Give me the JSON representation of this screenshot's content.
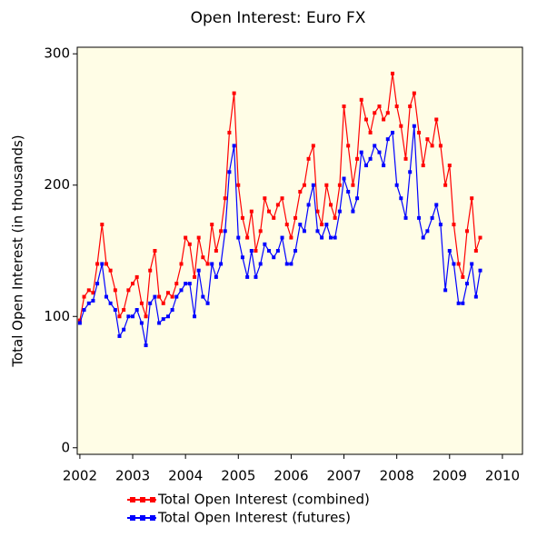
{
  "chart_data": {
    "type": "line",
    "title": "Open Interest: Euro FX",
    "y_label": "Total Open Interest (in thousands)",
    "x": [
      2002.0,
      2002.08,
      2002.17,
      2002.25,
      2002.33,
      2002.42,
      2002.5,
      2002.58,
      2002.67,
      2002.75,
      2002.83,
      2002.92,
      2003.0,
      2003.08,
      2003.17,
      2003.25,
      2003.33,
      2003.42,
      2003.5,
      2003.58,
      2003.67,
      2003.75,
      2003.83,
      2003.92,
      2004.0,
      2004.08,
      2004.17,
      2004.25,
      2004.33,
      2004.42,
      2004.5,
      2004.58,
      2004.67,
      2004.75,
      2004.83,
      2004.92,
      2005.0,
      2005.08,
      2005.17,
      2005.25,
      2005.33,
      2005.42,
      2005.5,
      2005.58,
      2005.67,
      2005.75,
      2005.83,
      2005.92,
      2006.0,
      2006.08,
      2006.17,
      2006.25,
      2006.33,
      2006.42,
      2006.5,
      2006.58,
      2006.67,
      2006.75,
      2006.83,
      2006.92,
      2007.0,
      2007.08,
      2007.17,
      2007.25,
      2007.33,
      2007.42,
      2007.5,
      2007.58,
      2007.67,
      2007.75,
      2007.83,
      2007.92,
      2008.0,
      2008.08,
      2008.17,
      2008.25,
      2008.33,
      2008.42,
      2008.5,
      2008.58,
      2008.67,
      2008.75,
      2008.83,
      2008.92,
      2009.0,
      2009.08,
      2009.17,
      2009.25,
      2009.33,
      2009.42,
      2009.5,
      2009.58
    ],
    "series": [
      {
        "name": "Total Open Interest (combined)",
        "color": "#ff0000",
        "values": [
          97,
          115,
          120,
          118,
          140,
          170,
          140,
          135,
          120,
          100,
          105,
          120,
          125,
          130,
          110,
          100,
          135,
          150,
          115,
          110,
          118,
          115,
          125,
          140,
          160,
          155,
          130,
          160,
          145,
          140,
          170,
          150,
          165,
          190,
          240,
          270,
          200,
          175,
          160,
          180,
          150,
          165,
          190,
          180,
          175,
          185,
          190,
          170,
          160,
          175,
          195,
          200,
          220,
          230,
          180,
          170,
          200,
          185,
          175,
          200,
          260,
          230,
          200,
          220,
          265,
          250,
          240,
          255,
          260,
          250,
          255,
          285,
          260,
          245,
          220,
          260,
          270,
          240,
          215,
          235,
          230,
          250,
          230,
          200,
          215,
          170,
          140,
          130,
          165,
          190,
          150,
          160
        ]
      },
      {
        "name": "Total Open Interest (futures)",
        "color": "#0000ff",
        "values": [
          95,
          105,
          110,
          112,
          125,
          140,
          115,
          110,
          105,
          85,
          90,
          100,
          100,
          105,
          95,
          78,
          110,
          115,
          95,
          98,
          100,
          105,
          115,
          120,
          125,
          125,
          100,
          135,
          115,
          110,
          140,
          130,
          140,
          165,
          210,
          230,
          160,
          145,
          130,
          150,
          130,
          140,
          155,
          150,
          145,
          150,
          160,
          140,
          140,
          150,
          170,
          165,
          185,
          200,
          165,
          160,
          170,
          160,
          160,
          180,
          205,
          195,
          180,
          190,
          225,
          215,
          220,
          230,
          225,
          215,
          235,
          240,
          200,
          190,
          175,
          210,
          245,
          175,
          160,
          165,
          175,
          185,
          170,
          120,
          150,
          140,
          110,
          110,
          125,
          140,
          115,
          135
        ]
      }
    ],
    "xlim": [
      2001.95,
      2010.38
    ],
    "xticks": [
      2002,
      2003,
      2004,
      2005,
      2006,
      2007,
      2008,
      2009,
      2010
    ],
    "ylim": [
      -5,
      305
    ],
    "yticks": [
      0,
      100,
      200,
      300
    ],
    "grid": false,
    "legend": "bottom",
    "background": "#fffde6"
  }
}
